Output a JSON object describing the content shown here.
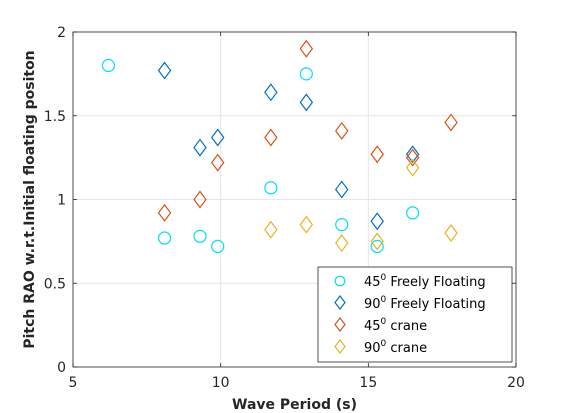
{
  "chart_data": {
    "type": "scatter",
    "title": "",
    "xlabel": "Wave Period (s)",
    "ylabel": "Pitch RAO w.r.t.Initial floating positon",
    "xlim": [
      5,
      20
    ],
    "ylim": [
      0,
      2
    ],
    "xticks": [
      5,
      10,
      15,
      20
    ],
    "yticks": [
      0,
      0.5,
      1,
      1.5,
      2
    ],
    "xtick_labels": [
      "5",
      "10",
      "15",
      "20"
    ],
    "ytick_labels": [
      "0",
      "0.5",
      "1",
      "1.5",
      "2"
    ],
    "grid": true,
    "legend_position": "bottom-right",
    "series": [
      {
        "name": "45",
        "name_sup": "0",
        "name_rest": " Freely Floating",
        "marker": "circle",
        "color": "#00e0f0",
        "x": [
          6.2,
          8.1,
          9.3,
          9.9,
          11.7,
          12.9,
          14.1,
          15.3,
          16.5
        ],
        "y": [
          1.8,
          0.77,
          0.78,
          0.72,
          1.07,
          1.75,
          0.85,
          0.72,
          0.92
        ]
      },
      {
        "name": "90",
        "name_sup": "0",
        "name_rest": " Freely Floating",
        "marker": "diamond",
        "color": "#0072bd",
        "x": [
          8.1,
          9.3,
          9.9,
          11.7,
          12.9,
          14.1,
          15.3,
          16.5
        ],
        "y": [
          1.77,
          1.31,
          1.37,
          1.64,
          1.58,
          1.06,
          0.87,
          1.27
        ]
      },
      {
        "name": "45",
        "name_sup": "0",
        "name_rest": " crane",
        "marker": "diamond",
        "color": "#d95319",
        "x": [
          8.1,
          9.3,
          9.9,
          11.7,
          12.9,
          14.1,
          15.3,
          16.5,
          17.8
        ],
        "y": [
          0.92,
          1.0,
          1.22,
          1.37,
          1.9,
          1.41,
          1.27,
          1.25,
          1.46
        ]
      },
      {
        "name": "90",
        "name_sup": "0",
        "name_rest": " crane",
        "marker": "diamond",
        "color": "#edb120",
        "x": [
          11.7,
          12.9,
          14.1,
          15.3,
          16.5,
          17.8
        ],
        "y": [
          0.82,
          0.85,
          0.74,
          0.75,
          1.19,
          0.8
        ]
      }
    ]
  }
}
